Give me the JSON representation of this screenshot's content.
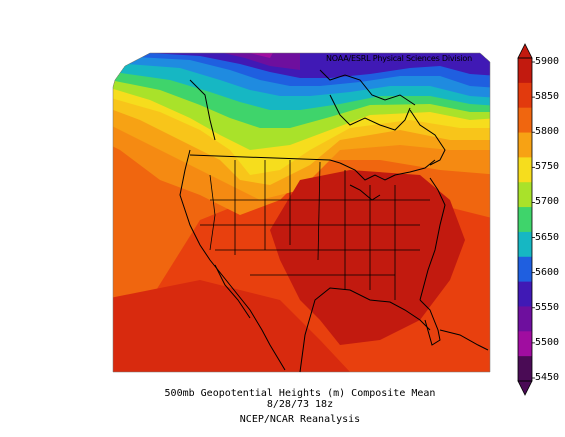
{
  "map": {
    "credit": "NOAA/ESRL Physical Sciences Division",
    "caption_line1": "500mb Geopotential Heights (m)   Composite Mean",
    "caption_line2": "8/28/73 18z",
    "caption_line3": "NCEP/NCAR Reanalysis"
  },
  "legend": {
    "labels": [
      "5900",
      "5850",
      "5800",
      "5750",
      "5700",
      "5650",
      "5600",
      "5550",
      "5500",
      "5450"
    ],
    "colors": [
      "#c21a0f",
      "#e23a0d",
      "#f0660f",
      "#f7a214",
      "#f6dd1d",
      "#a9e22a",
      "#3fd46b",
      "#16b7c3",
      "#1f5fe0",
      "#4019b5",
      "#6e0f9e",
      "#a00da0",
      "#4a0b55"
    ]
  }
}
